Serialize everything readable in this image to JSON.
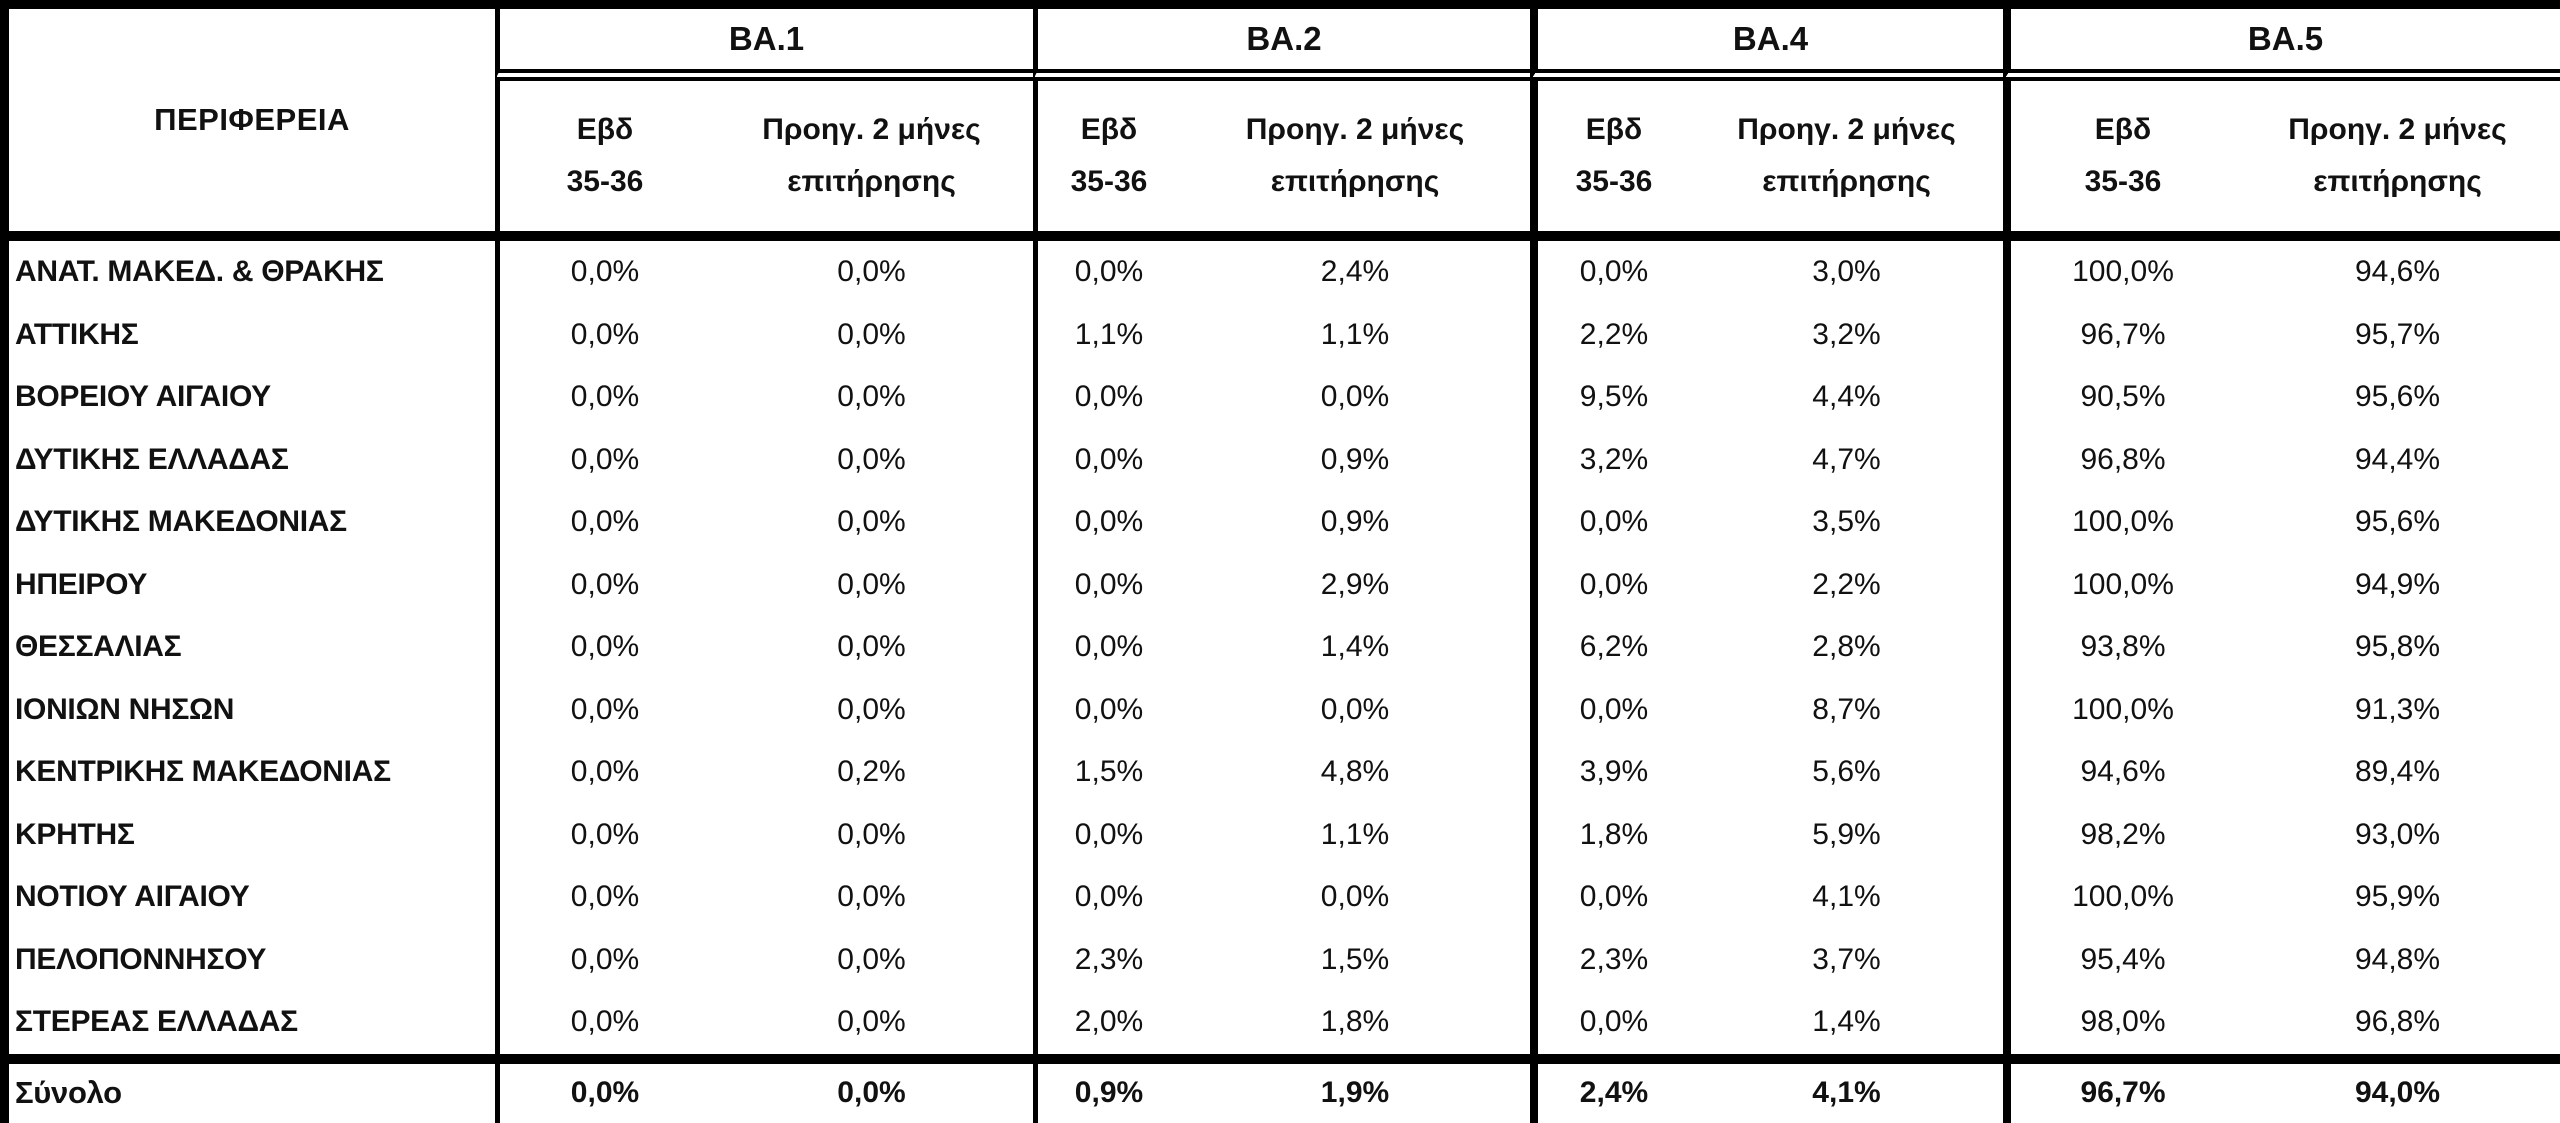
{
  "table": {
    "region_header": "ΠΕΡΙΦΕΡΕΙΑ",
    "groups": [
      {
        "label": "BA.1"
      },
      {
        "label": "BA.2"
      },
      {
        "label": "BA.4"
      },
      {
        "label": "BA.5"
      }
    ],
    "subheaders": {
      "week_line1": "Εβδ",
      "week_line2": "35-36",
      "prev_line1": "Προηγ. 2 μήνες",
      "prev_line2": "επιτήρησης"
    },
    "rows": [
      {
        "region": "ΑΝΑΤ. ΜΑΚΕΔ. & ΘΡΑΚΗΣ",
        "values": [
          "0,0%",
          "0,0%",
          "0,0%",
          "2,4%",
          "0,0%",
          "3,0%",
          "100,0%",
          "94,6%"
        ]
      },
      {
        "region": "ΑΤΤΙΚΗΣ",
        "values": [
          "0,0%",
          "0,0%",
          "1,1%",
          "1,1%",
          "2,2%",
          "3,2%",
          "96,7%",
          "95,7%"
        ]
      },
      {
        "region": "ΒΟΡΕΙΟΥ ΑΙΓΑΙΟΥ",
        "values": [
          "0,0%",
          "0,0%",
          "0,0%",
          "0,0%",
          "9,5%",
          "4,4%",
          "90,5%",
          "95,6%"
        ]
      },
      {
        "region": "ΔΥΤΙΚΗΣ ΕΛΛΑΔΑΣ",
        "values": [
          "0,0%",
          "0,0%",
          "0,0%",
          "0,9%",
          "3,2%",
          "4,7%",
          "96,8%",
          "94,4%"
        ]
      },
      {
        "region": "ΔΥΤΙΚΗΣ ΜΑΚΕΔΟΝΙΑΣ",
        "values": [
          "0,0%",
          "0,0%",
          "0,0%",
          "0,9%",
          "0,0%",
          "3,5%",
          "100,0%",
          "95,6%"
        ]
      },
      {
        "region": "ΗΠΕΙΡΟΥ",
        "values": [
          "0,0%",
          "0,0%",
          "0,0%",
          "2,9%",
          "0,0%",
          "2,2%",
          "100,0%",
          "94,9%"
        ]
      },
      {
        "region": "ΘΕΣΣΑΛΙΑΣ",
        "values": [
          "0,0%",
          "0,0%",
          "0,0%",
          "1,4%",
          "6,2%",
          "2,8%",
          "93,8%",
          "95,8%"
        ]
      },
      {
        "region": "ΙΟΝΙΩΝ ΝΗΣΩΝ",
        "values": [
          "0,0%",
          "0,0%",
          "0,0%",
          "0,0%",
          "0,0%",
          "8,7%",
          "100,0%",
          "91,3%"
        ]
      },
      {
        "region": "ΚΕΝΤΡΙΚΗΣ ΜΑΚΕΔΟΝΙΑΣ",
        "values": [
          "0,0%",
          "0,2%",
          "1,5%",
          "4,8%",
          "3,9%",
          "5,6%",
          "94,6%",
          "89,4%"
        ]
      },
      {
        "region": "ΚΡΗΤΗΣ",
        "values": [
          "0,0%",
          "0,0%",
          "0,0%",
          "1,1%",
          "1,8%",
          "5,9%",
          "98,2%",
          "93,0%"
        ]
      },
      {
        "region": "ΝΟΤΙΟΥ ΑΙΓΑΙΟΥ",
        "values": [
          "0,0%",
          "0,0%",
          "0,0%",
          "0,0%",
          "0,0%",
          "4,1%",
          "100,0%",
          "95,9%"
        ]
      },
      {
        "region": "ΠΕΛΟΠΟΝΝΗΣΟΥ",
        "values": [
          "0,0%",
          "0,0%",
          "2,3%",
          "1,5%",
          "2,3%",
          "3,7%",
          "95,4%",
          "94,8%"
        ]
      },
      {
        "region": "ΣΤΕΡΕΑΣ ΕΛΛΑΔΑΣ",
        "values": [
          "0,0%",
          "0,0%",
          "2,0%",
          "1,8%",
          "0,0%",
          "1,4%",
          "98,0%",
          "96,8%"
        ]
      }
    ],
    "total_row": {
      "label": "Σύνολο",
      "values": [
        "0,0%",
        "0,0%",
        "0,9%",
        "1,9%",
        "2,4%",
        "4,1%",
        "96,7%",
        "94,0%"
      ]
    }
  },
  "colors": {
    "border": "#000000",
    "text": "#111111",
    "background": "#ffffff"
  }
}
